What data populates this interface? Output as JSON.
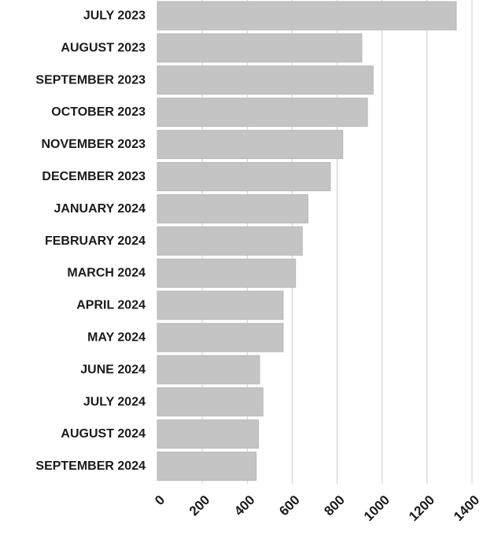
{
  "chart_data": {
    "type": "bar",
    "orientation": "horizontal",
    "categories": [
      "JULY 2023",
      "AUGUST 2023",
      "SEPTEMBER 2023",
      "OCTOBER 2023",
      "NOVEMBER 2023",
      "DECEMBER 2023",
      "JANUARY 2024",
      "FEBRUARY 2024",
      "MARCH 2024",
      "APRIL 2024",
      "MAY 2024",
      "JUNE 2024",
      "JULY 2024",
      "AUGUST 2024",
      "SEPTEMBER 2024"
    ],
    "values": [
      1330,
      910,
      960,
      935,
      825,
      770,
      670,
      645,
      615,
      560,
      560,
      455,
      470,
      450,
      440
    ],
    "xlim": [
      0,
      1400
    ],
    "xticks": [
      "0",
      "200",
      "400",
      "600",
      "800",
      "1000",
      "1200",
      "1400"
    ],
    "grid": true,
    "bar_color": "#c4c4c4",
    "title": "",
    "xlabel": "",
    "ylabel": ""
  }
}
